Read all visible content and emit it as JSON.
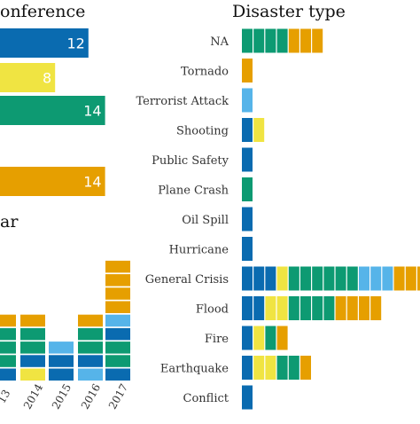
{
  "colors": {
    "blue": "#0a6bb0",
    "green": "#0d9a72",
    "yellow": "#f0e442",
    "orange": "#e69f00",
    "light_blue": "#56b4e9"
  },
  "chart_data": [
    {
      "type": "bar",
      "title": "onference",
      "orientation": "horizontal",
      "values": [
        12,
        8,
        14,
        14
      ],
      "value_labels": [
        "12",
        "8",
        "14",
        "14"
      ],
      "bar_colors": [
        "blue",
        "yellow",
        "green",
        "orange"
      ]
    },
    {
      "type": "bar",
      "title": "ar",
      "orientation": "vertical",
      "stacked": true,
      "categories": [
        "13",
        "2014",
        "2015",
        "2016",
        "2017"
      ],
      "stacks": [
        [
          "blue",
          "green",
          "green",
          "green",
          "orange"
        ],
        [
          "yellow",
          "blue",
          "green",
          "green",
          "orange"
        ],
        [
          "blue",
          "blue",
          "light_blue"
        ],
        [
          "light_blue",
          "blue",
          "green",
          "green",
          "orange"
        ],
        [
          "blue",
          "green",
          "green",
          "blue",
          "light_blue",
          "orange",
          "orange",
          "orange",
          "orange"
        ]
      ]
    },
    {
      "type": "bar",
      "title": "Disaster type",
      "orientation": "horizontal",
      "stacked": true,
      "categories": [
        "NA",
        "Tornado",
        "Terrorist Attack",
        "Shooting",
        "Public Safety",
        "Plane Crash",
        "Oil Spill",
        "Hurricane",
        "General Crisis",
        "Flood",
        "Fire",
        "Earthquake",
        "Conflict"
      ],
      "stacks": [
        [
          "green",
          "green",
          "green",
          "green",
          "orange",
          "orange",
          "orange"
        ],
        [
          "orange"
        ],
        [
          "light_blue"
        ],
        [
          "blue",
          "yellow"
        ],
        [
          "blue"
        ],
        [
          "green"
        ],
        [
          "blue"
        ],
        [
          "blue"
        ],
        [
          "blue",
          "blue",
          "blue",
          "yellow",
          "green",
          "green",
          "green",
          "green",
          "green",
          "green",
          "light_blue",
          "light_blue",
          "light_blue",
          "orange",
          "orange",
          "orange"
        ],
        [
          "blue",
          "blue",
          "yellow",
          "yellow",
          "green",
          "green",
          "green",
          "green",
          "orange",
          "orange",
          "orange",
          "orange"
        ],
        [
          "blue",
          "yellow",
          "green",
          "orange"
        ],
        [
          "blue",
          "yellow",
          "yellow",
          "green",
          "green",
          "orange"
        ],
        [
          "blue"
        ]
      ]
    }
  ]
}
